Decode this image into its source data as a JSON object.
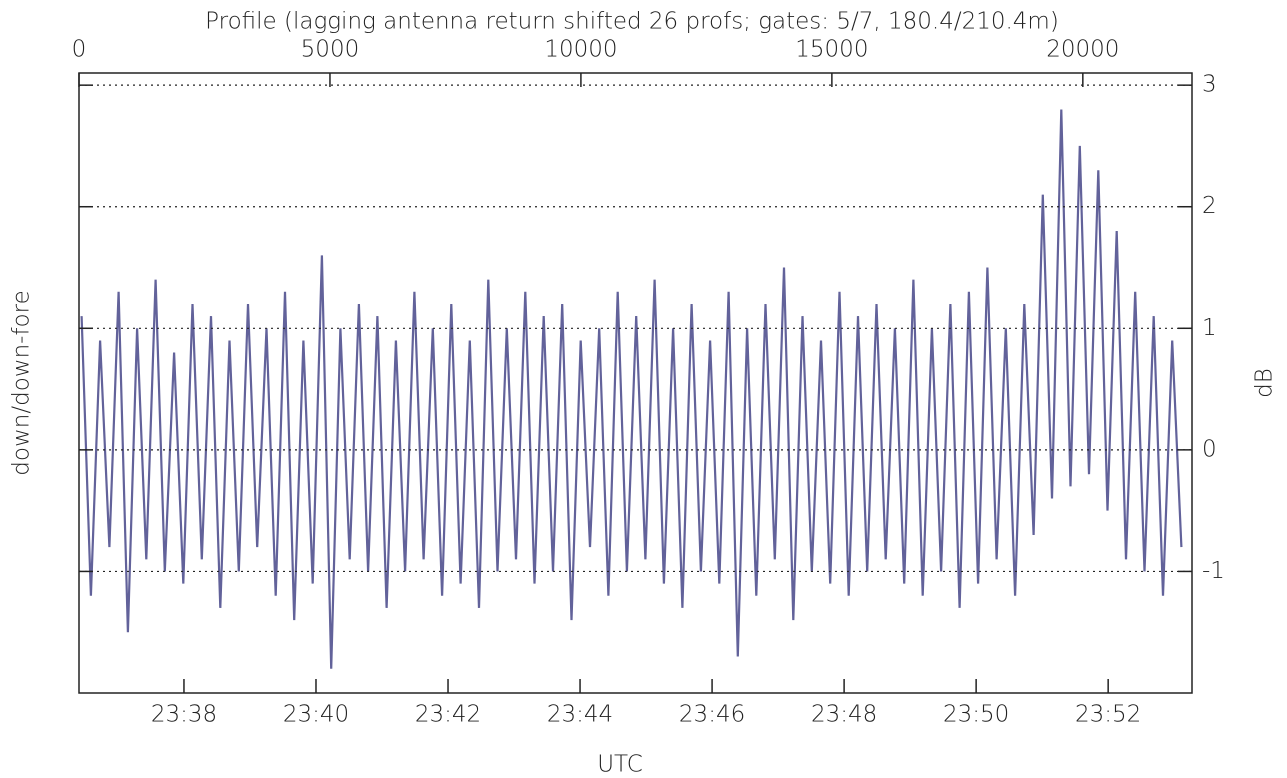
{
  "chart_data": {
    "type": "line",
    "title": "Profile (lagging antenna return shifted 26 profs; gates: 5/7, 180.4/210.4m)",
    "x_label": "UTC",
    "y_label": "down/down-fore",
    "y2_label": "dB",
    "xlim": [
      1416.41,
      1433.27
    ],
    "xticks": [
      {
        "value": 1418,
        "label": "23:38"
      },
      {
        "value": 1420,
        "label": "23:40"
      },
      {
        "value": 1422,
        "label": "23:42"
      },
      {
        "value": 1424,
        "label": "23:44"
      },
      {
        "value": 1426,
        "label": "23:46"
      },
      {
        "value": 1428,
        "label": "23:48"
      },
      {
        "value": 1430,
        "label": "23:50"
      },
      {
        "value": 1432,
        "label": "23:52"
      }
    ],
    "x2lim": [
      0,
      22175
    ],
    "x2ticks": [
      0,
      5000,
      10000,
      15000,
      20000
    ],
    "ylim": [
      -2,
      3.1
    ],
    "yticks": [
      -1,
      0,
      1,
      2,
      3
    ],
    "grid": true,
    "x": [
      1416.45,
      1416.59,
      1416.73,
      1416.87,
      1417.01,
      1417.15,
      1417.29,
      1417.43,
      1417.57,
      1417.71,
      1417.85,
      1417.99,
      1418.13,
      1418.27,
      1418.41,
      1418.55,
      1418.69,
      1418.83,
      1418.97,
      1419.11,
      1419.25,
      1419.39,
      1419.53,
      1419.67,
      1419.81,
      1419.95,
      1420.09,
      1420.23,
      1420.37,
      1420.51,
      1420.65,
      1420.79,
      1420.93,
      1421.07,
      1421.21,
      1421.35,
      1421.49,
      1421.63,
      1421.77,
      1421.91,
      1422.05,
      1422.19,
      1422.33,
      1422.47,
      1422.61,
      1422.75,
      1422.89,
      1423.03,
      1423.17,
      1423.31,
      1423.45,
      1423.59,
      1423.73,
      1423.87,
      1424.01,
      1424.15,
      1424.29,
      1424.43,
      1424.57,
      1424.71,
      1424.85,
      1424.99,
      1425.13,
      1425.27,
      1425.41,
      1425.55,
      1425.69,
      1425.83,
      1425.97,
      1426.11,
      1426.25,
      1426.39,
      1426.53,
      1426.67,
      1426.81,
      1426.95,
      1427.09,
      1427.23,
      1427.37,
      1427.51,
      1427.65,
      1427.79,
      1427.93,
      1428.07,
      1428.21,
      1428.35,
      1428.49,
      1428.63,
      1428.77,
      1428.91,
      1429.05,
      1429.19,
      1429.33,
      1429.47,
      1429.61,
      1429.75,
      1429.89,
      1430.03,
      1430.17,
      1430.31,
      1430.45,
      1430.59,
      1430.73,
      1430.87,
      1431.01,
      1431.15,
      1431.29,
      1431.43,
      1431.57,
      1431.71,
      1431.85,
      1431.99,
      1432.13,
      1432.27,
      1432.41,
      1432.55,
      1432.69,
      1432.83,
      1432.97,
      1433.11
    ],
    "series": [
      {
        "color": "#62629a",
        "values": [
          1.1,
          -1.2,
          0.9,
          -0.8,
          1.3,
          -1.5,
          1.0,
          -0.9,
          1.4,
          -1.0,
          0.8,
          -1.1,
          1.2,
          -0.9,
          1.1,
          -1.3,
          0.9,
          -1.0,
          1.2,
          -0.8,
          1.0,
          -1.2,
          1.3,
          -1.4,
          0.9,
          -1.1,
          1.6,
          -1.8,
          1.0,
          -0.9,
          1.2,
          -1.0,
          1.1,
          -1.3,
          0.9,
          -1.0,
          1.3,
          -0.9,
          1.0,
          -1.2,
          1.2,
          -1.1,
          0.9,
          -1.3,
          1.4,
          -1.0,
          1.0,
          -0.9,
          1.3,
          -1.1,
          1.1,
          -1.0,
          1.2,
          -1.4,
          0.9,
          -0.8,
          1.0,
          -1.2,
          1.3,
          -1.0,
          1.1,
          -0.9,
          1.4,
          -1.1,
          1.0,
          -1.3,
          1.2,
          -1.0,
          0.9,
          -1.1,
          1.3,
          -1.7,
          1.0,
          -1.2,
          1.2,
          -0.9,
          1.5,
          -1.4,
          1.1,
          -1.0,
          0.9,
          -1.1,
          1.3,
          -1.2,
          1.1,
          -1.0,
          1.2,
          -0.9,
          1.0,
          -1.1,
          1.4,
          -1.2,
          1.0,
          -1.0,
          1.2,
          -1.3,
          1.3,
          -1.1,
          1.5,
          -0.9,
          1.0,
          -1.2,
          1.2,
          -0.7,
          2.1,
          -0.4,
          2.8,
          -0.3,
          2.5,
          -0.2,
          2.3,
          -0.5,
          1.8,
          -0.9,
          1.3,
          -1.0,
          1.1,
          -1.2,
          0.9,
          -0.8
        ]
      }
    ]
  }
}
